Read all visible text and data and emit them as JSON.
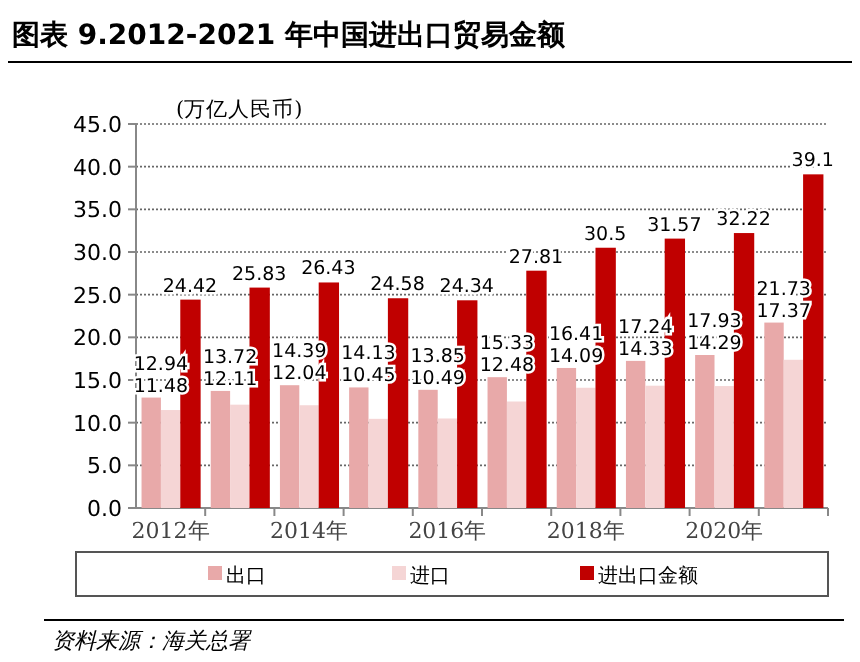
{
  "chart_data": {
    "type": "bar",
    "title": "图表 9.2012-2021 年中国进出口贸易金额",
    "ylabel": "(万亿人民币)",
    "categories": [
      "2012年",
      null,
      "2014年",
      null,
      "2016年",
      null,
      "2018年",
      null,
      "2020年",
      null
    ],
    "series": [
      {
        "name": "出口",
        "color": "#e8a9a9",
        "values": [
          12.94,
          13.72,
          14.39,
          14.13,
          13.85,
          15.33,
          16.41,
          17.24,
          17.93,
          21.73
        ]
      },
      {
        "name": "进口",
        "color": "#f5d5d5",
        "values": [
          11.48,
          12.11,
          12.04,
          10.45,
          10.49,
          12.48,
          14.09,
          14.33,
          14.29,
          17.37
        ]
      },
      {
        "name": "进出口金额",
        "color": "#c00000",
        "values": [
          24.42,
          25.83,
          26.43,
          24.58,
          24.34,
          27.81,
          30.5,
          31.57,
          32.22,
          39.1
        ]
      }
    ],
    "ylim": [
      0,
      45
    ],
    "yticks": [
      {
        "value": 0,
        "label": "0.0"
      },
      {
        "value": 5,
        "label": "5.0"
      },
      {
        "value": 10,
        "label": "10.0"
      },
      {
        "value": 15,
        "label": "15.0"
      },
      {
        "value": 20,
        "label": "20.0"
      },
      {
        "value": 25,
        "label": "25.0"
      },
      {
        "value": 30,
        "label": "30.0"
      },
      {
        "value": 35,
        "label": "35.0"
      },
      {
        "value": 40,
        "label": "40.0"
      },
      {
        "value": 45,
        "label": "45.0"
      }
    ],
    "grid": "y",
    "legend": "bottom",
    "data_labels": true,
    "annotations": [
      "资料来源：海关总署"
    ]
  }
}
